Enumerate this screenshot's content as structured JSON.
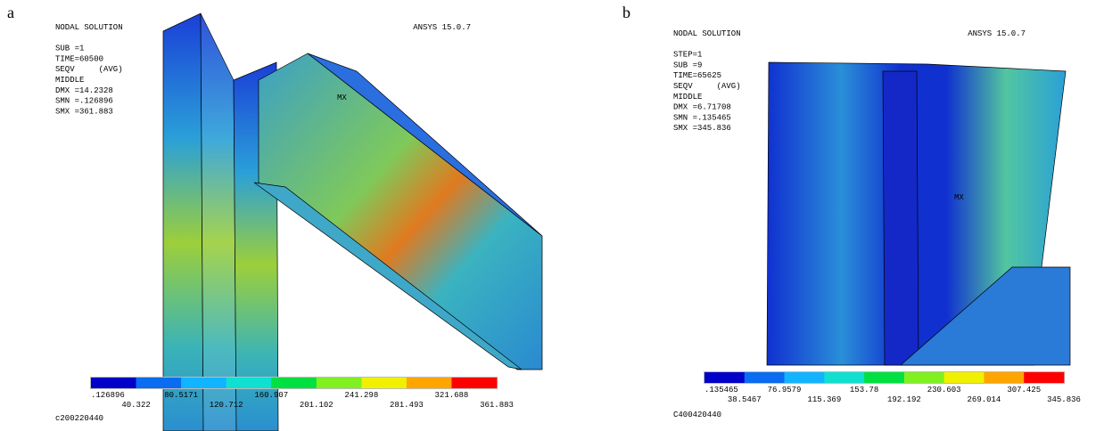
{
  "panels": [
    {
      "label": "a",
      "header": [
        "NODAL SOLUTION",
        "SUB =1",
        "TIME=60500",
        "SEQV     (AVG)",
        "MIDDLE",
        "DMX =14.2328",
        "SMN =.126896",
        "SMX =361.883"
      ],
      "corner": "ANSYS 15.0.7",
      "mx": "MX",
      "colorbar": {
        "top": [
          ".126896",
          "80.5171",
          "160.907",
          "241.298",
          "321.688"
        ],
        "bottom": [
          "40.322",
          "120.712",
          "201.102",
          "281.493",
          "361.883"
        ]
      },
      "footer": "c200220440"
    },
    {
      "label": "b",
      "header": [
        "NODAL SOLUTION",
        "STEP=1",
        "SUB =9",
        "TIME=65625",
        "SEQV     (AVG)",
        "MIDDLE",
        "DMX =6.71708",
        "SMN =.135465",
        "SMX =345.836"
      ],
      "corner": "ANSYS 15.0.7",
      "mx": "MX",
      "colorbar": {
        "top": [
          ".135465",
          "76.9579",
          "153.78",
          "230.603",
          "307.425"
        ],
        "bottom": [
          "38.5467",
          "115.369",
          "192.192",
          "269.014",
          "345.836"
        ]
      },
      "footer": "C400420440"
    }
  ]
}
